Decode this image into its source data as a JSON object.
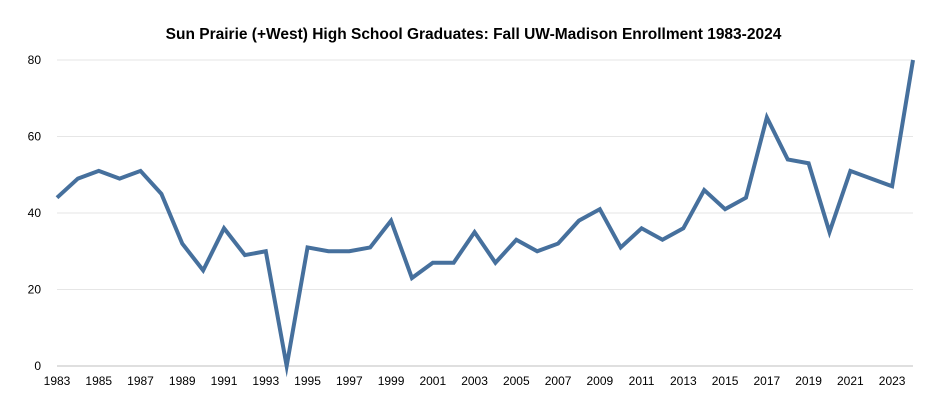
{
  "chart_data": {
    "type": "line",
    "title": "Sun Prairie (+West) High School Graduates: Fall UW-Madison Enrollment 1983-2024",
    "xlabel": "",
    "ylabel": "",
    "x": [
      1983,
      1984,
      1985,
      1986,
      1987,
      1988,
      1989,
      1990,
      1991,
      1992,
      1993,
      1994,
      1995,
      1996,
      1997,
      1998,
      1999,
      2000,
      2001,
      2002,
      2003,
      2004,
      2005,
      2006,
      2007,
      2008,
      2009,
      2010,
      2011,
      2012,
      2013,
      2014,
      2015,
      2016,
      2017,
      2018,
      2019,
      2020,
      2021,
      2022,
      2023,
      2024
    ],
    "series": [
      {
        "values": [
          44,
          49,
          51,
          49,
          51,
          45,
          32,
          25,
          36,
          29,
          30,
          0,
          31,
          30,
          30,
          31,
          38,
          23,
          27,
          27,
          35,
          27,
          33,
          30,
          32,
          38,
          41,
          31,
          36,
          33,
          36,
          46,
          41,
          44,
          65,
          54,
          53,
          35,
          51,
          49,
          47,
          80
        ]
      }
    ],
    "xticks": [
      "1983",
      "1985",
      "1987",
      "1989",
      "1991",
      "1993",
      "1995",
      "1997",
      "1999",
      "2001",
      "2003",
      "2005",
      "2007",
      "2009",
      "2011",
      "2013",
      "2015",
      "2017",
      "2019",
      "2021",
      "2023"
    ],
    "yticks": [
      "0",
      "20",
      "40",
      "60",
      "80"
    ],
    "ylim": [
      0,
      80
    ],
    "xlim": [
      1983,
      2024
    ],
    "grid": true,
    "legend": "none",
    "line_color": "#46709d",
    "grid_color": "#e6e6e6"
  }
}
